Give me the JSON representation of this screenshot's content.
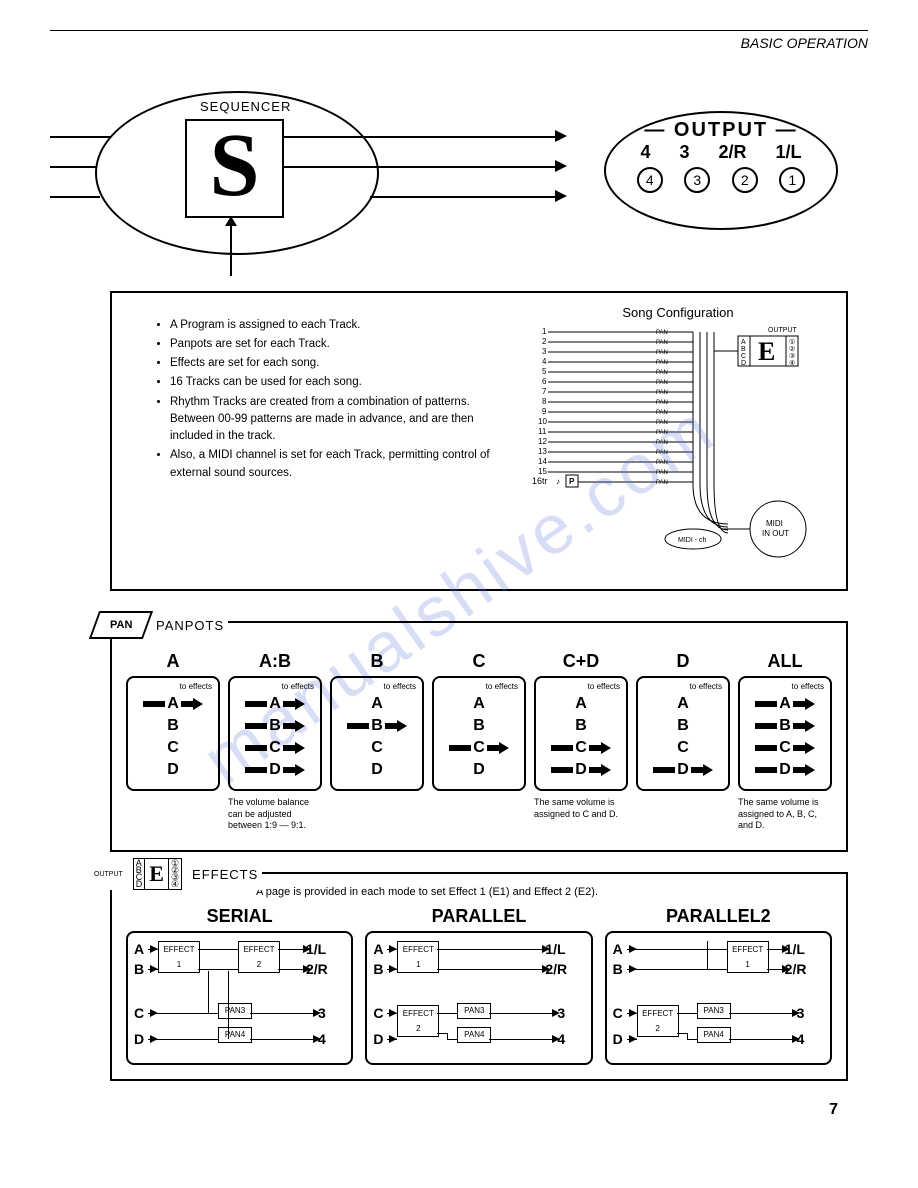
{
  "header": {
    "section": "BASIC OPERATION"
  },
  "sequencer": {
    "label": "SEQUENCER",
    "letter": "S"
  },
  "output": {
    "title": "OUTPUT",
    "labels": [
      "4",
      "3",
      "2/R",
      "1/L"
    ],
    "circles": [
      "4",
      "3",
      "2",
      "1"
    ]
  },
  "config": {
    "bullets": [
      "A Program is assigned to each Track.",
      "Panpots are set for each Track.",
      "Effects are set for each song.",
      "16 Tracks can be used for each song.",
      "Rhythm Tracks are created from a combination of patterns. Between 00-99 patterns are made in advance, and are then included in the track.",
      "Also, a MIDI channel is set for each Track, permitting control of external sound sources."
    ],
    "song_title": "Song Configuration",
    "track_last": "16tr",
    "pan_label": "PAN",
    "p_label": "P",
    "output_small": "OUTPUT",
    "e_label": "E",
    "abcd": [
      "A",
      "B",
      "C",
      "D"
    ],
    "out_nums": [
      "①",
      "②",
      "③",
      "④"
    ],
    "midi_inout": "MIDI IN OUT",
    "midi_ch": "MIDI - ch"
  },
  "panpots": {
    "diamond": "PAN",
    "title": "PANPOTS",
    "to_effects": "to effects",
    "cols": [
      {
        "head": "A",
        "bold": [
          true,
          false,
          false,
          false
        ],
        "note": ""
      },
      {
        "head": "A:B",
        "bold": [
          true,
          true,
          true,
          true
        ],
        "note": "The volume balance can be adjusted between 1:9 — 9:1."
      },
      {
        "head": "B",
        "bold": [
          false,
          true,
          false,
          false
        ],
        "note": ""
      },
      {
        "head": "C",
        "bold": [
          false,
          false,
          true,
          false
        ],
        "note": ""
      },
      {
        "head": "C+D",
        "bold": [
          false,
          false,
          true,
          true
        ],
        "note": "The same volume is assigned to C and D."
      },
      {
        "head": "D",
        "bold": [
          false,
          false,
          false,
          true
        ],
        "note": ""
      },
      {
        "head": "ALL",
        "bold": [
          true,
          true,
          true,
          true
        ],
        "note": "The same volume is assigned to A, B, C, and D."
      }
    ],
    "letters": [
      "A",
      "B",
      "C",
      "D"
    ]
  },
  "effects": {
    "output_label": "OUTPUT",
    "title": "EFFECTS",
    "desc": "A page is provided in each mode to set Effect 1 (E1) and Effect 2 (E2).",
    "modes": [
      "SERIAL",
      "PARALLEL",
      "PARALLEL2"
    ],
    "inputs": [
      "A",
      "B",
      "C",
      "D"
    ],
    "outputs": [
      "1/L",
      "2/R",
      "3",
      "4"
    ],
    "effect1": "EFFECT 1",
    "effect2": "EFFECT 2",
    "pan3": "PAN3",
    "pan4": "PAN4"
  },
  "page": "7",
  "watermark": "manualshive.com"
}
